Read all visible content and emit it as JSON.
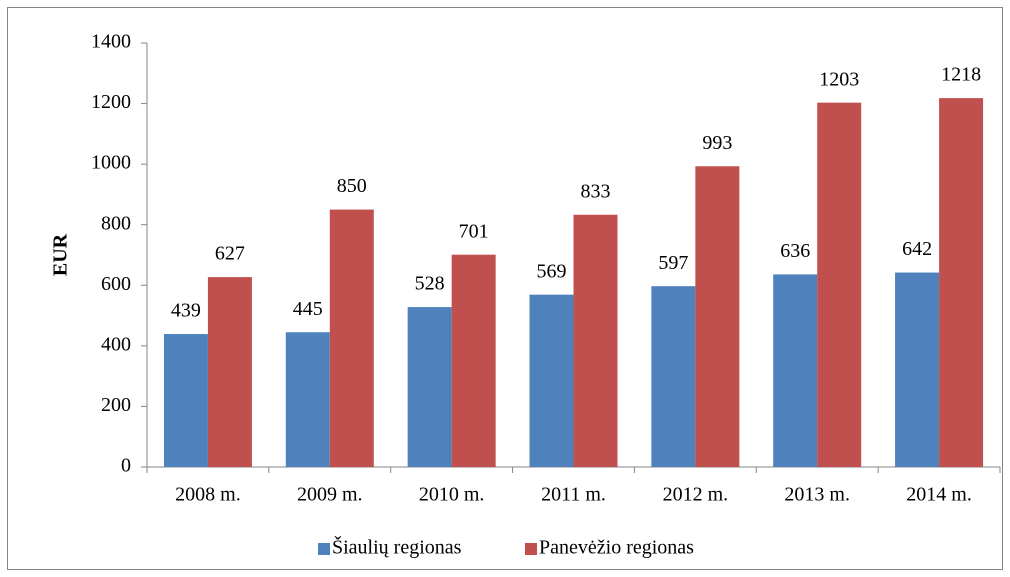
{
  "chart_data": {
    "type": "bar",
    "y_label": "EUR",
    "categories": [
      "2008 m.",
      "2009 m.",
      "2010 m.",
      "2011 m.",
      "2012 m.",
      "2013 m.",
      "2014 m."
    ],
    "series": [
      {
        "name": "Šiaulių regionas",
        "color": "#4f81bd",
        "values": [
          439,
          445,
          528,
          569,
          597,
          636,
          642
        ]
      },
      {
        "name": "Panevėžio regionas",
        "color": "#c0504d",
        "values": [
          627,
          850,
          701,
          833,
          993,
          1203,
          1218
        ]
      }
    ],
    "ylim": [
      0,
      1400
    ],
    "yticks": [
      0,
      200,
      400,
      600,
      800,
      1000,
      1200,
      1400
    ],
    "grid": false,
    "legend": "bottom"
  }
}
